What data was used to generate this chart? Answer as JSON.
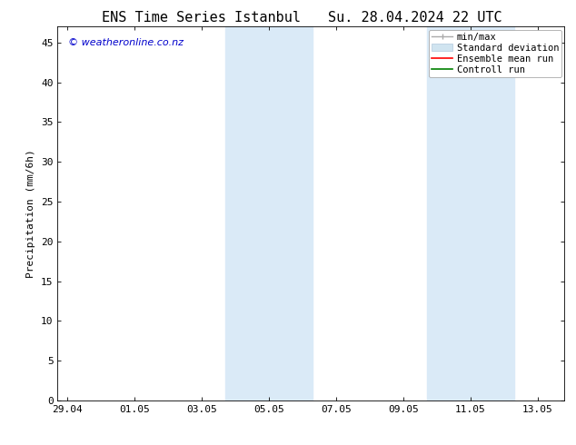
{
  "title_left": "ENS Time Series Istanbul",
  "title_right": "Su. 28.04.2024 22 UTC",
  "ylabel": "Precipitation (mm/6h)",
  "background_color": "#ffffff",
  "plot_bg_color": "#ffffff",
  "ylim": [
    0,
    47
  ],
  "yticks": [
    0,
    5,
    10,
    15,
    20,
    25,
    30,
    35,
    40,
    45
  ],
  "xtick_labels": [
    "29.04",
    "01.05",
    "03.05",
    "05.05",
    "07.05",
    "09.05",
    "11.05",
    "13.05"
  ],
  "xtick_positions": [
    0,
    2,
    4,
    6,
    8,
    10,
    12,
    14
  ],
  "xlim": [
    -0.3,
    14.8
  ],
  "shaded_regions": [
    {
      "x_start": 4.7,
      "x_end": 5.3,
      "color": "#daeaf7"
    },
    {
      "x_start": 5.3,
      "x_end": 6.7,
      "color": "#daeaf7"
    },
    {
      "x_start": 6.7,
      "x_end": 7.3,
      "color": "#daeaf7"
    },
    {
      "x_start": 10.7,
      "x_end": 11.3,
      "color": "#daeaf7"
    },
    {
      "x_start": 11.3,
      "x_end": 12.7,
      "color": "#daeaf7"
    },
    {
      "x_start": 12.7,
      "x_end": 13.3,
      "color": "#daeaf7"
    }
  ],
  "legend_entries": [
    {
      "label": "min/max",
      "color": "#aaaaaa",
      "style": "range"
    },
    {
      "label": "Standard deviation",
      "color": "#ccddee",
      "style": "fill"
    },
    {
      "label": "Ensemble mean run",
      "color": "#ff0000",
      "style": "line"
    },
    {
      "label": "Controll run",
      "color": "#008000",
      "style": "line"
    }
  ],
  "watermark_text": "© weatheronline.co.nz",
  "watermark_color": "#0000cc",
  "title_fontsize": 11,
  "axis_fontsize": 8,
  "tick_fontsize": 8,
  "legend_fontsize": 7.5,
  "font_family": "DejaVu Sans Mono"
}
